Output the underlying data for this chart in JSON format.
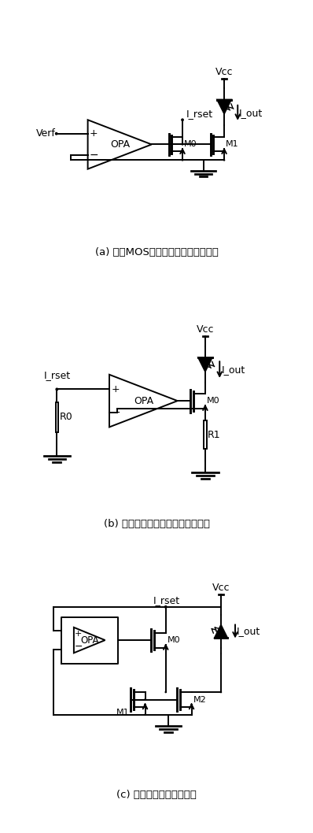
{
  "title_a": "(a) 基于MOS管饱和区特性的恒流模块",
  "title_b": "(b) 基于电流负反馈结构的恒流模块",
  "title_c": "(c) 拟合工作区的恒流模块",
  "bg_color": "#ffffff",
  "line_color": "#000000",
  "fig_width": 3.98,
  "fig_height": 10.58
}
